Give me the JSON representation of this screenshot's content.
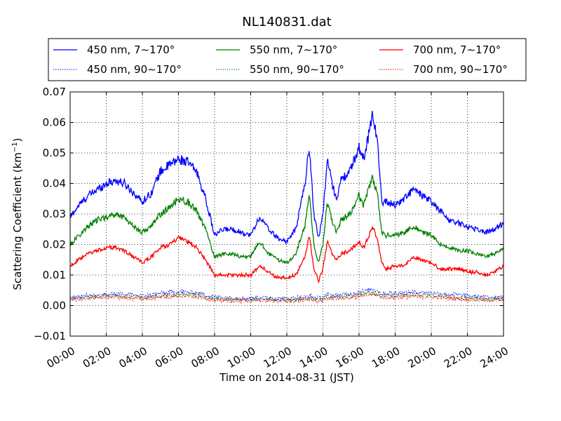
{
  "chart_data": {
    "type": "line",
    "title": "NL140831.dat",
    "xlabel": "Time on 2014-08-31 (JST)",
    "ylabel": "Scattering Coefficient (km",
    "ylabel_sup": "−1",
    "ylabel_tail": ")",
    "xlim": [
      0,
      24
    ],
    "ylim": [
      -0.01,
      0.07
    ],
    "x_ticks": [
      0,
      2,
      4,
      6,
      8,
      10,
      12,
      14,
      16,
      18,
      20,
      22,
      24
    ],
    "x_tick_labels": [
      "00:00",
      "02:00",
      "04:00",
      "06:00",
      "08:00",
      "10:00",
      "12:00",
      "14:00",
      "16:00",
      "18:00",
      "20:00",
      "22:00",
      "24:00"
    ],
    "y_ticks": [
      -0.01,
      0.0,
      0.01,
      0.02,
      0.03,
      0.04,
      0.05,
      0.06,
      0.07
    ],
    "y_tick_labels": [
      "−0.01",
      "0.00",
      "0.01",
      "0.02",
      "0.03",
      "0.04",
      "0.05",
      "0.06",
      "0.07"
    ],
    "grid": true,
    "legend_position": "top, above plot, 3 columns",
    "base_x": [
      0,
      0.5,
      1,
      1.5,
      2,
      2.5,
      3,
      3.5,
      4,
      4.5,
      5,
      5.5,
      6,
      6.5,
      7,
      7.5,
      8,
      8.5,
      9,
      9.5,
      10,
      10.5,
      11,
      11.5,
      12,
      12.5,
      13,
      13.25,
      13.5,
      13.75,
      14,
      14.25,
      14.5,
      14.75,
      15,
      15.5,
      16,
      16.25,
      16.5,
      16.75,
      17,
      17.25,
      17.5,
      18,
      18.5,
      19,
      19.5,
      20,
      20.5,
      21,
      21.5,
      22,
      22.5,
      23,
      23.5,
      24
    ],
    "series": [
      {
        "name": "450 nm, 7∼170°",
        "color": "#0000ff",
        "style": "solid",
        "values": [
          0.029,
          0.033,
          0.036,
          0.038,
          0.04,
          0.041,
          0.04,
          0.037,
          0.034,
          0.037,
          0.044,
          0.046,
          0.048,
          0.047,
          0.044,
          0.035,
          0.023,
          0.025,
          0.025,
          0.024,
          0.023,
          0.029,
          0.025,
          0.022,
          0.021,
          0.025,
          0.04,
          0.052,
          0.03,
          0.022,
          0.03,
          0.048,
          0.04,
          0.035,
          0.041,
          0.044,
          0.052,
          0.048,
          0.055,
          0.063,
          0.055,
          0.034,
          0.034,
          0.033,
          0.035,
          0.038,
          0.036,
          0.034,
          0.031,
          0.028,
          0.027,
          0.026,
          0.025,
          0.024,
          0.025,
          0.027
        ]
      },
      {
        "name": "550 nm, 7∼170°",
        "color": "#008000",
        "style": "solid",
        "values": [
          0.02,
          0.023,
          0.026,
          0.028,
          0.029,
          0.03,
          0.029,
          0.026,
          0.024,
          0.026,
          0.03,
          0.032,
          0.035,
          0.034,
          0.031,
          0.025,
          0.016,
          0.017,
          0.017,
          0.016,
          0.016,
          0.021,
          0.017,
          0.015,
          0.014,
          0.017,
          0.026,
          0.036,
          0.02,
          0.014,
          0.02,
          0.034,
          0.028,
          0.024,
          0.028,
          0.03,
          0.036,
          0.033,
          0.038,
          0.042,
          0.037,
          0.024,
          0.023,
          0.023,
          0.024,
          0.026,
          0.024,
          0.023,
          0.02,
          0.019,
          0.018,
          0.018,
          0.017,
          0.016,
          0.017,
          0.019
        ]
      },
      {
        "name": "700 nm, 7∼170°",
        "color": "#ff0000",
        "style": "solid",
        "values": [
          0.013,
          0.015,
          0.017,
          0.018,
          0.019,
          0.019,
          0.018,
          0.016,
          0.014,
          0.016,
          0.019,
          0.02,
          0.022,
          0.021,
          0.019,
          0.015,
          0.01,
          0.01,
          0.01,
          0.01,
          0.01,
          0.013,
          0.011,
          0.009,
          0.009,
          0.01,
          0.016,
          0.023,
          0.012,
          0.008,
          0.012,
          0.021,
          0.017,
          0.015,
          0.017,
          0.018,
          0.021,
          0.019,
          0.022,
          0.026,
          0.022,
          0.014,
          0.012,
          0.013,
          0.013,
          0.016,
          0.015,
          0.014,
          0.012,
          0.012,
          0.012,
          0.011,
          0.011,
          0.01,
          0.011,
          0.013
        ]
      },
      {
        "name": "450 nm, 90∼170°",
        "color": "#0000ff",
        "style": "dotted",
        "values": [
          0.0025,
          0.003,
          0.0033,
          0.0035,
          0.0036,
          0.0038,
          0.0037,
          0.0035,
          0.0032,
          0.0035,
          0.004,
          0.0042,
          0.0045,
          0.0044,
          0.0042,
          0.0035,
          0.0028,
          0.0027,
          0.0026,
          0.0025,
          0.0024,
          0.0026,
          0.0025,
          0.0024,
          0.0023,
          0.0025,
          0.0028,
          0.0032,
          0.0027,
          0.0025,
          0.0028,
          0.0035,
          0.0034,
          0.0033,
          0.0035,
          0.0038,
          0.0045,
          0.0047,
          0.005,
          0.0055,
          0.005,
          0.004,
          0.004,
          0.004,
          0.0042,
          0.0045,
          0.0043,
          0.0042,
          0.004,
          0.0037,
          0.0035,
          0.0032,
          0.003,
          0.0028,
          0.0028,
          0.0028
        ]
      },
      {
        "name": "550 nm, 90∼170°",
        "color": "#008000",
        "style": "dotted",
        "values": [
          0.002,
          0.0024,
          0.0027,
          0.0029,
          0.003,
          0.0031,
          0.003,
          0.0028,
          0.0026,
          0.0028,
          0.0032,
          0.0034,
          0.0036,
          0.0035,
          0.0033,
          0.0028,
          0.0022,
          0.0021,
          0.002,
          0.002,
          0.0019,
          0.0021,
          0.002,
          0.0019,
          0.0018,
          0.002,
          0.0022,
          0.0026,
          0.0021,
          0.002,
          0.0022,
          0.0028,
          0.0027,
          0.0026,
          0.0028,
          0.003,
          0.0035,
          0.0037,
          0.004,
          0.0043,
          0.004,
          0.0032,
          0.0032,
          0.0031,
          0.0033,
          0.0035,
          0.0034,
          0.0033,
          0.003,
          0.0028,
          0.0026,
          0.0024,
          0.0022,
          0.0021,
          0.0021,
          0.0021
        ]
      },
      {
        "name": "700 nm, 90∼170°",
        "color": "#ff0000",
        "style": "dotted",
        "values": [
          0.0017,
          0.002,
          0.0023,
          0.0025,
          0.0026,
          0.0027,
          0.0026,
          0.0024,
          0.0022,
          0.0024,
          0.0028,
          0.003,
          0.0032,
          0.0031,
          0.0029,
          0.0024,
          0.0018,
          0.0017,
          0.0016,
          0.0016,
          0.0015,
          0.0017,
          0.0016,
          0.0015,
          0.0015,
          0.0016,
          0.0018,
          0.0022,
          0.0017,
          0.0016,
          0.0018,
          0.0024,
          0.0023,
          0.0022,
          0.0024,
          0.0026,
          0.003,
          0.0032,
          0.0034,
          0.0037,
          0.0034,
          0.0027,
          0.0027,
          0.0026,
          0.0028,
          0.003,
          0.0029,
          0.0028,
          0.0026,
          0.0024,
          0.0022,
          0.002,
          0.0019,
          0.0018,
          0.0018,
          0.0018
        ]
      }
    ]
  }
}
